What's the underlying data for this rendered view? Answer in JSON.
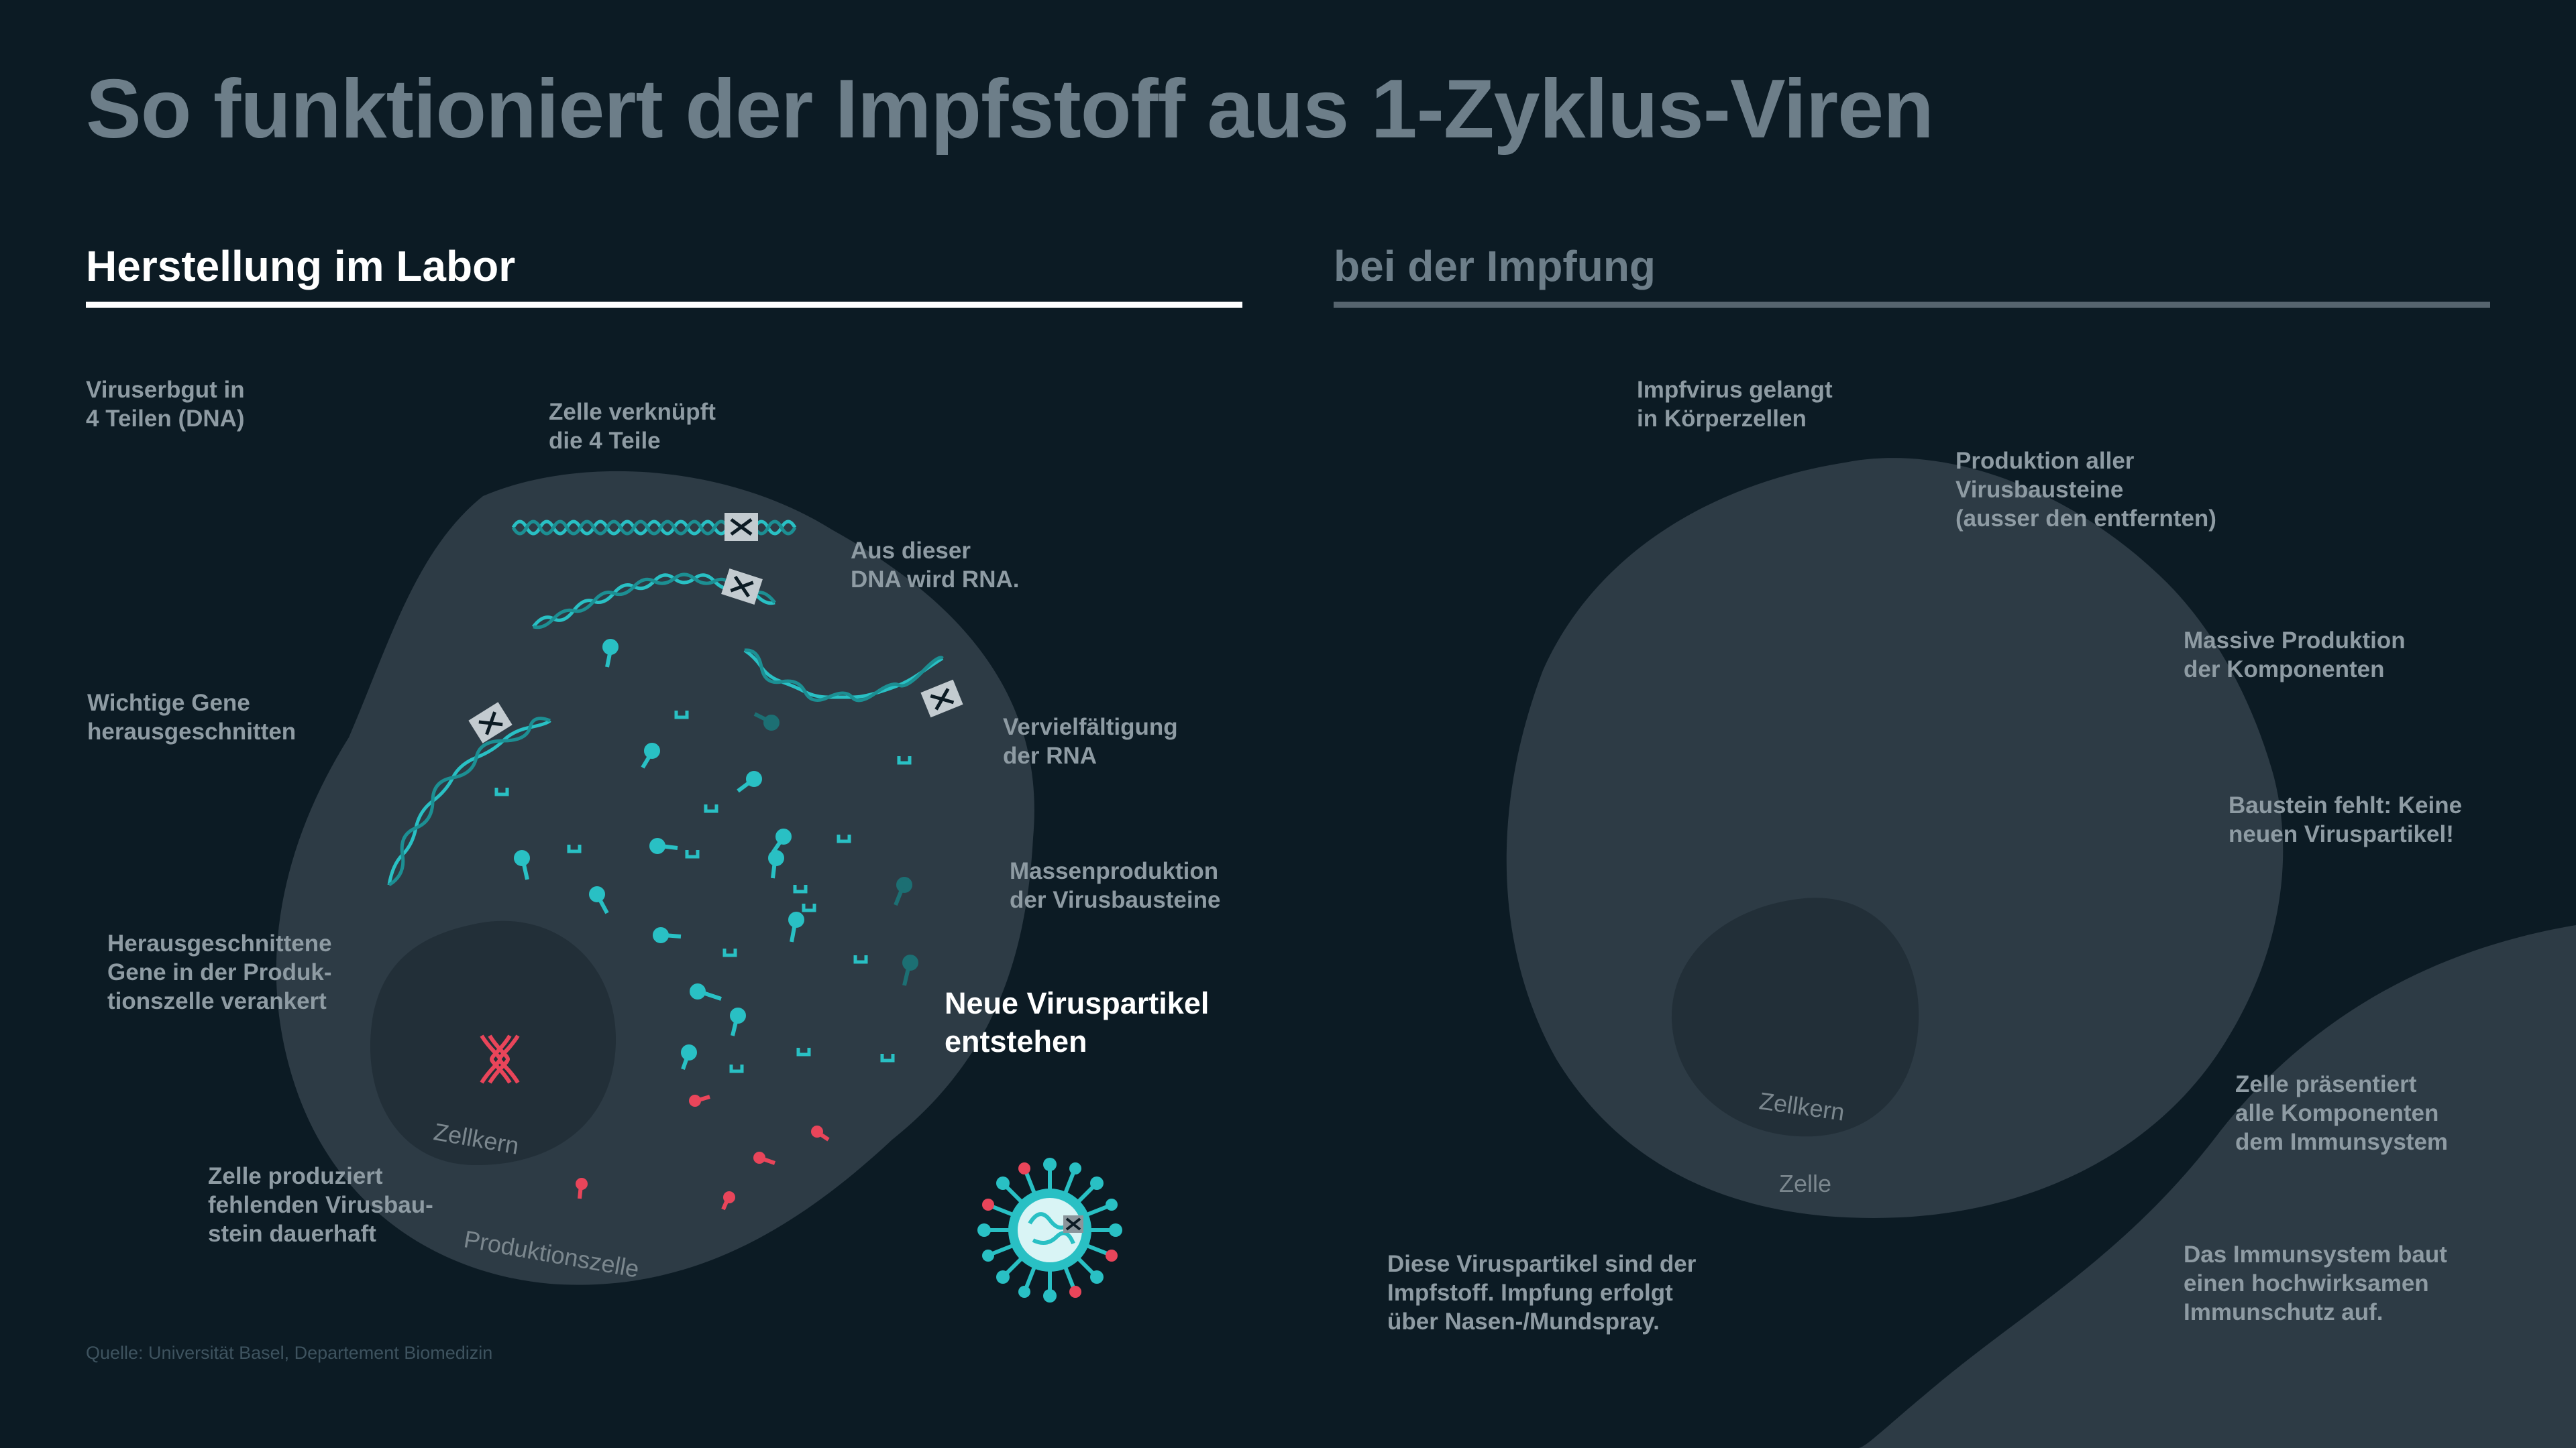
{
  "title": "So funktioniert der Impfstoff aus 1-Zyklus-Viren",
  "colors": {
    "background": "#0c1b24",
    "cell": "#2d3b45",
    "nucleus": "#222f38",
    "dna_teal": "#29c0c4",
    "marker_red": "#e9455a",
    "title_gray": "#6d7e89"
  },
  "sections": {
    "labor": {
      "heading": "Herstellung im Labor",
      "labels": {
        "viruserbgut": "Viruserbgut in\n4 Teilen (DNA)",
        "verknuepft": "Zelle verknüpft\ndie 4 Teile",
        "rna": "Aus dieser\nDNA wird RNA.",
        "gene": "Wichtige Gene\nherausgeschnitten",
        "vervielfaeltigung": "Vervielfältigung\nder RNA",
        "massenproduktion": "Massenproduktion\nder Virusbausteine",
        "verankert": "Herausgeschnittene\nGene in der Produk-\ntionszelle verankert",
        "neue_partikel": "Neue Viruspartikel\nentstehen",
        "dauerhaft": "Zelle produziert\nfehlenden Virusbau-\nstein dauerhaft"
      },
      "cell_labels": {
        "nucleus": "Zellkern",
        "cell": "Produktionszelle"
      }
    },
    "impfung": {
      "heading": "bei der Impfung",
      "labels": {
        "gelangt": "Impfvirus gelangt\nin Körperzellen",
        "produktion": "Produktion aller\nVirusbausteine\n(ausser den entfernten)",
        "massive": "Massive Produktion\nder Komponenten",
        "fehlt": "Baustein fehlt: Keine\nneuen Viruspartikel!",
        "praesentiert": "Zelle präsentiert\nalle Komponenten\ndem Immunsystem",
        "impfstoff": "Diese Viruspartikel sind der\nImpfstoff. Impfung erfolgt\nüber Nasen-/Mundspray.",
        "immunsystem": "Das Immunsystem baut\neinen hochwirksamen\nImmunschutz auf."
      },
      "cell_labels": {
        "nucleus": "Zellkern",
        "cell": "Zelle"
      }
    }
  },
  "source": "Quelle: Universität Basel, Departement Biomedizin"
}
